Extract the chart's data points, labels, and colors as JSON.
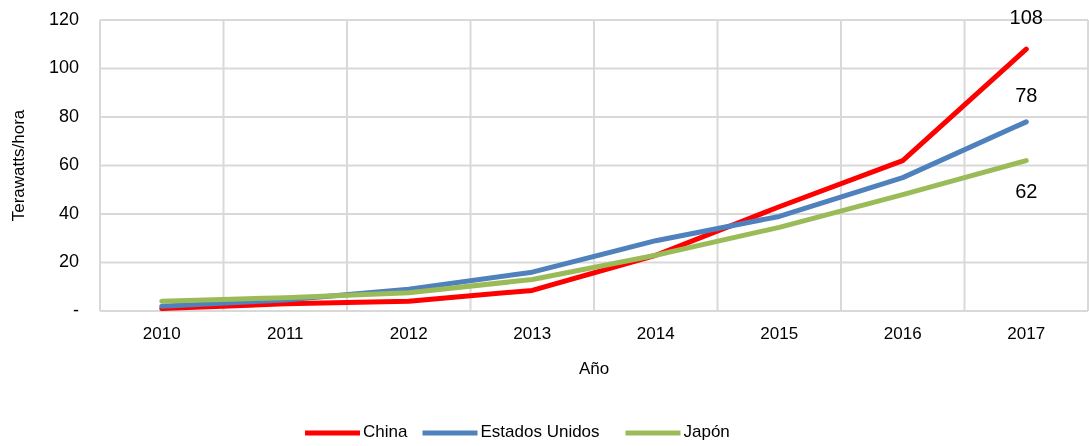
{
  "chart_data": {
    "type": "line",
    "xlabel": "Año",
    "ylabel": "Terawatts/hora",
    "categories": [
      "2010",
      "2011",
      "2012",
      "2013",
      "2014",
      "2015",
      "2016",
      "2017"
    ],
    "series": [
      {
        "name": "China",
        "color": "#ff0000",
        "values": [
          1,
          3,
          4,
          8.5,
          23,
          43,
          62,
          108
        ],
        "value_labels": [
          null,
          null,
          null,
          null,
          null,
          null,
          null,
          "108"
        ]
      },
      {
        "name": "Estados Unidos",
        "color": "#4f81bd",
        "values": [
          2,
          4.5,
          9,
          16,
          29,
          39,
          55,
          78
        ],
        "value_labels": [
          null,
          null,
          null,
          null,
          null,
          null,
          null,
          "78"
        ]
      },
      {
        "name": "Japón",
        "color": "#9bbb59",
        "values": [
          4,
          5.5,
          7.5,
          13,
          23,
          34.5,
          48,
          62
        ],
        "value_labels": [
          null,
          null,
          null,
          null,
          null,
          null,
          null,
          "62"
        ]
      }
    ],
    "ylim": [
      0,
      120
    ],
    "yticks": [
      {
        "value": 0,
        "label": "-"
      },
      20,
      40,
      60,
      80,
      100,
      120
    ],
    "grid": true,
    "legend": "bottom",
    "marker": "none",
    "line_style": "solid"
  }
}
